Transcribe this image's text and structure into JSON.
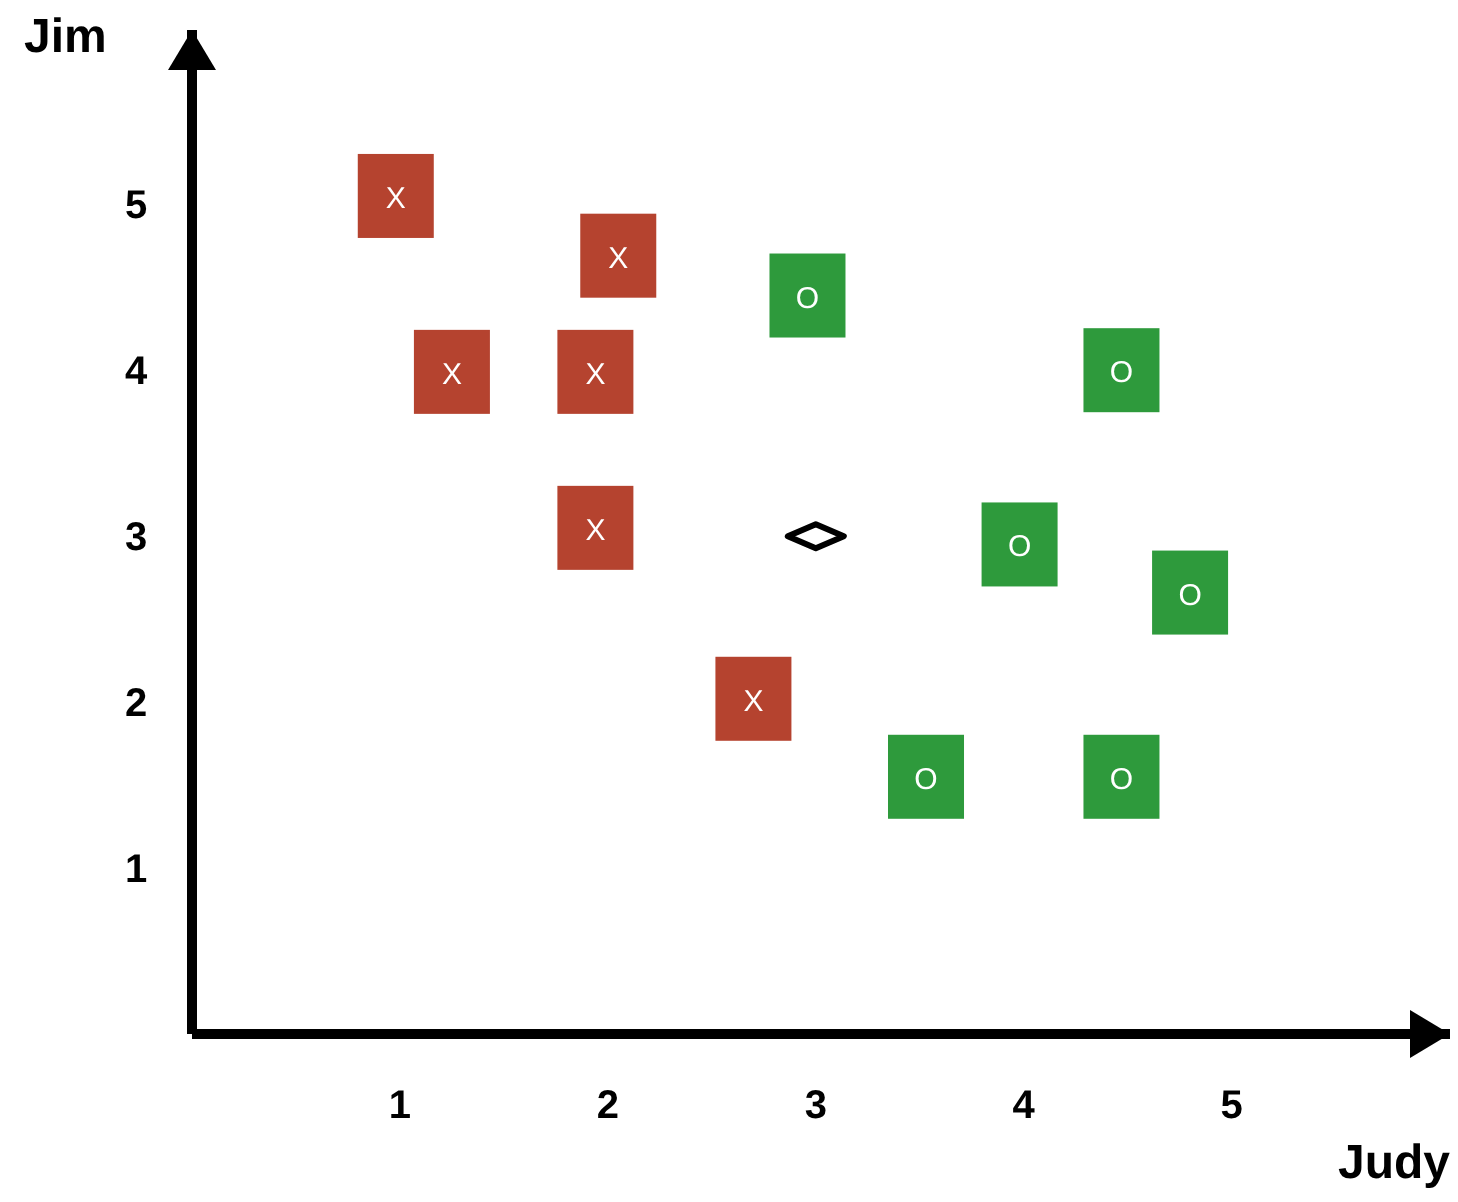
{
  "chart_data": {
    "type": "scatter",
    "xlabel": "Judy",
    "ylabel": "Jim",
    "xlim": [
      0,
      6.05
    ],
    "ylim": [
      0,
      6.05
    ],
    "xticks": [
      1,
      2,
      3,
      4,
      5
    ],
    "yticks": [
      1,
      2,
      3,
      4,
      5
    ],
    "grid": false,
    "series": [
      {
        "name": "X",
        "color": "#b5432f",
        "marker": "square",
        "x": [
          0.98,
          2.05,
          1.25,
          1.94,
          1.94,
          2.7
        ],
        "values": [
          5.05,
          4.69,
          3.99,
          3.99,
          3.05,
          2.02
        ]
      },
      {
        "name": "O",
        "color": "#2e9a3c",
        "marker": "square",
        "x": [
          2.96,
          4.47,
          3.98,
          4.8,
          3.53,
          4.47
        ],
        "values": [
          4.45,
          4.0,
          2.95,
          2.66,
          1.55,
          1.55
        ]
      },
      {
        "color": "#000000",
        "marker": "diamond",
        "x": [
          3.0
        ],
        "values": [
          3.0
        ]
      }
    ]
  }
}
